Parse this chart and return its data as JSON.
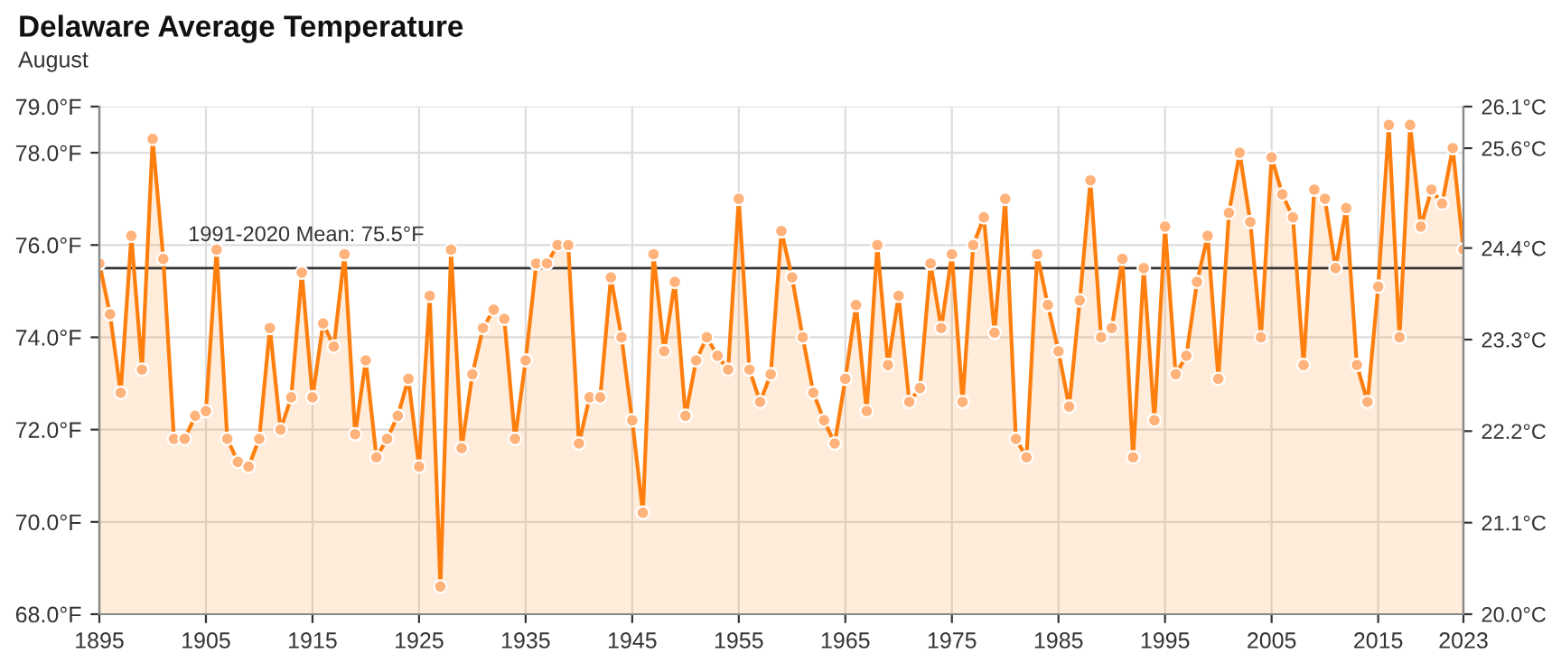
{
  "chart_data": {
    "type": "area",
    "title": "Delaware Average Temperature",
    "subtitle": "August",
    "x": [
      1895,
      1896,
      1897,
      1898,
      1899,
      1900,
      1901,
      1902,
      1903,
      1904,
      1905,
      1906,
      1907,
      1908,
      1909,
      1910,
      1911,
      1912,
      1913,
      1914,
      1915,
      1916,
      1917,
      1918,
      1919,
      1920,
      1921,
      1922,
      1923,
      1924,
      1925,
      1926,
      1927,
      1928,
      1929,
      1930,
      1931,
      1932,
      1933,
      1934,
      1935,
      1936,
      1937,
      1938,
      1939,
      1940,
      1941,
      1942,
      1943,
      1944,
      1945,
      1946,
      1947,
      1948,
      1949,
      1950,
      1951,
      1952,
      1953,
      1954,
      1955,
      1956,
      1957,
      1958,
      1959,
      1960,
      1961,
      1962,
      1963,
      1964,
      1965,
      1966,
      1967,
      1968,
      1969,
      1970,
      1971,
      1972,
      1973,
      1974,
      1975,
      1976,
      1977,
      1978,
      1979,
      1980,
      1981,
      1982,
      1983,
      1984,
      1985,
      1986,
      1987,
      1988,
      1989,
      1990,
      1991,
      1992,
      1993,
      1994,
      1995,
      1996,
      1997,
      1998,
      1999,
      2000,
      2001,
      2002,
      2003,
      2004,
      2005,
      2006,
      2007,
      2008,
      2009,
      2010,
      2011,
      2012,
      2013,
      2014,
      2015,
      2016,
      2017,
      2018,
      2019,
      2020,
      2021,
      2022,
      2023
    ],
    "series": [
      {
        "color": "#ff7f0e",
        "values": [
          75.6,
          74.5,
          72.8,
          76.2,
          73.3,
          78.3,
          75.7,
          71.8,
          71.8,
          72.3,
          72.4,
          75.9,
          71.8,
          71.3,
          71.2,
          71.8,
          74.2,
          72.0,
          72.7,
          75.4,
          72.7,
          74.3,
          73.8,
          75.8,
          71.9,
          73.5,
          71.4,
          71.8,
          72.3,
          73.1,
          71.2,
          74.9,
          68.6,
          75.9,
          71.6,
          73.2,
          74.2,
          74.6,
          74.4,
          71.8,
          73.5,
          75.6,
          75.6,
          76.0,
          76.0,
          71.7,
          72.7,
          72.7,
          75.3,
          74.0,
          72.2,
          70.2,
          75.8,
          73.7,
          75.2,
          72.3,
          73.5,
          74.0,
          73.6,
          73.3,
          77.0,
          73.3,
          72.6,
          73.2,
          76.3,
          75.3,
          74.0,
          72.8,
          72.2,
          71.7,
          73.1,
          74.7,
          72.4,
          76.0,
          73.4,
          74.9,
          72.6,
          72.9,
          75.6,
          74.2,
          75.8,
          72.6,
          76.0,
          76.6,
          74.1,
          77.0,
          71.8,
          71.4,
          75.8,
          74.7,
          73.7,
          72.5,
          74.8,
          77.4,
          74.0,
          74.2,
          75.7,
          71.4,
          75.5,
          72.2,
          76.4,
          73.2,
          73.6,
          75.2,
          76.2,
          73.1,
          76.7,
          78.0,
          76.5,
          74.0,
          77.9,
          77.1,
          76.6,
          73.4,
          77.2,
          77.0,
          75.5,
          76.8,
          73.4,
          72.6,
          75.1,
          78.6,
          74.0,
          78.6,
          76.4,
          77.2,
          76.9,
          78.1,
          75.9
        ]
      }
    ],
    "marker": "circle",
    "line_style": "solid",
    "xlim": [
      1895,
      2023
    ],
    "xticks": [
      1895,
      1905,
      1915,
      1925,
      1935,
      1945,
      1955,
      1965,
      1975,
      1985,
      1995,
      2005,
      2015,
      2023
    ],
    "ylim": [
      68.0,
      79.0
    ],
    "yticks": [
      {
        "value": 68.0,
        "label": "68.0°F"
      },
      {
        "value": 70.0,
        "label": "70.0°F"
      },
      {
        "value": 72.0,
        "label": "72.0°F"
      },
      {
        "value": 74.0,
        "label": "74.0°F"
      },
      {
        "value": 76.0,
        "label": "76.0°F"
      },
      {
        "value": 78.0,
        "label": "78.0°F"
      },
      {
        "value": 79.0,
        "label": "79.0°F"
      }
    ],
    "y2lim": [
      20.0,
      26.1
    ],
    "y2ticks": [
      {
        "value": 20.0,
        "label": "20.0°C"
      },
      {
        "value": 21.1,
        "label": "21.1°C"
      },
      {
        "value": 22.2,
        "label": "22.2°C"
      },
      {
        "value": 23.3,
        "label": "23.3°C"
      },
      {
        "value": 24.4,
        "label": "24.4°C"
      },
      {
        "value": 25.6,
        "label": "25.6°C"
      },
      {
        "value": 26.1,
        "label": "26.1°C"
      }
    ],
    "ref_lines": [
      {
        "axis": "y",
        "value": 75.5,
        "label": "1991-2020 Mean: 75.5°F",
        "color": "#333333",
        "line_style": "solid"
      }
    ],
    "grid": true,
    "legend": false
  }
}
